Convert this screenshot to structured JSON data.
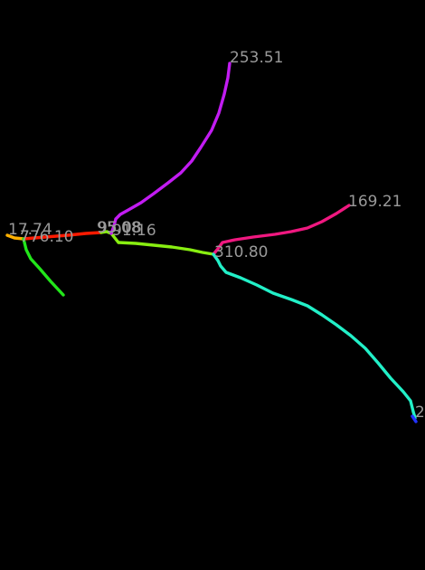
{
  "background": "#000000",
  "label_color": "#9a9a9a",
  "branches": [
    {
      "id": "orange-stub",
      "color": "#ffb000",
      "label": "17.74"
    },
    {
      "id": "red-trunk",
      "color": "#ff1a00",
      "label": "776.10"
    },
    {
      "id": "green-left",
      "color": "#22e61a",
      "label": ""
    },
    {
      "id": "lime-center",
      "color": "#88ee11",
      "label": "95.08"
    },
    {
      "id": "violet-up",
      "color": "#c21cf2",
      "label": "95.08"
    },
    {
      "id": "lime-right",
      "color": "#88ee11",
      "label": "91.16"
    },
    {
      "id": "magenta-right",
      "color": "#f01890",
      "label": "253.51"
    },
    {
      "id": "pink-right",
      "color": "#f01880",
      "label": "169.21"
    },
    {
      "id": "cyan-down",
      "color": "#22f0c8",
      "label": "310.80"
    },
    {
      "id": "blue-tip",
      "color": "#2233ff",
      "label": "2"
    }
  ]
}
